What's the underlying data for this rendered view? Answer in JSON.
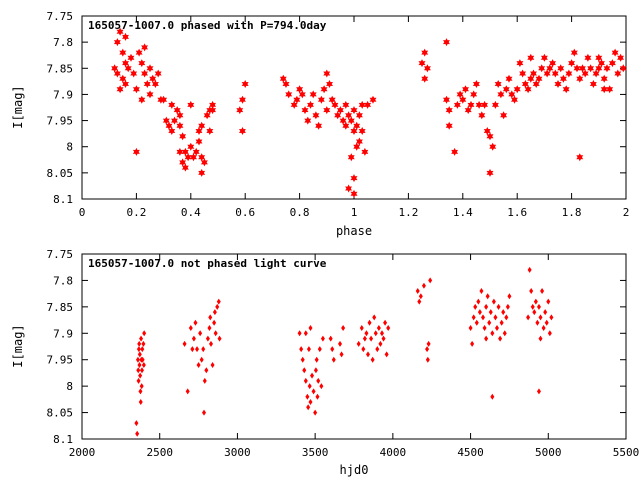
{
  "colors": {
    "points": "#ff0000",
    "axes": "#000000",
    "background": "#ffffff"
  },
  "chart_data": [
    {
      "type": "scatter",
      "title": "165057-1007.0 phased with P=794.0day",
      "xlabel": "phase",
      "ylabel": "I[mag]",
      "xlim": [
        0,
        2
      ],
      "ylim": [
        7.75,
        8.1
      ],
      "y_inverted": true,
      "grid": false,
      "xticks": [
        0,
        0.2,
        0.4,
        0.6,
        0.8,
        1,
        1.2,
        1.4,
        1.6,
        1.8,
        2
      ],
      "xtick_labels": [
        "0",
        "0.2",
        "0.4",
        "0.6",
        "0.8",
        "1",
        "1.2",
        "1.4",
        "1.6",
        "1.8",
        "2"
      ],
      "yticks": [
        7.75,
        7.8,
        7.85,
        7.9,
        7.95,
        8,
        8.05,
        8.1
      ],
      "ytick_labels": [
        "7.75",
        "7.8",
        "7.85",
        "7.9",
        "7.95",
        "8",
        "8.05",
        "8.1"
      ],
      "marker": "star",
      "points": [
        [
          0.13,
          7.8
        ],
        [
          0.14,
          7.78
        ],
        [
          0.15,
          7.82
        ],
        [
          0.16,
          7.79
        ],
        [
          0.12,
          7.85
        ],
        [
          0.13,
          7.86
        ],
        [
          0.15,
          7.87
        ],
        [
          0.16,
          7.84
        ],
        [
          0.17,
          7.85
        ],
        [
          0.18,
          7.83
        ],
        [
          0.14,
          7.89
        ],
        [
          0.16,
          7.88
        ],
        [
          0.19,
          7.86
        ],
        [
          0.2,
          7.89
        ],
        [
          0.21,
          7.82
        ],
        [
          0.22,
          7.84
        ],
        [
          0.23,
          7.86
        ],
        [
          0.24,
          7.88
        ],
        [
          0.25,
          7.85
        ],
        [
          0.22,
          7.91
        ],
        [
          0.25,
          7.9
        ],
        [
          0.23,
          7.81
        ],
        [
          0.26,
          7.87
        ],
        [
          0.27,
          7.88
        ],
        [
          0.28,
          7.86
        ],
        [
          0.29,
          7.91
        ],
        [
          0.2,
          8.01
        ],
        [
          0.3,
          7.91
        ],
        [
          0.31,
          7.95
        ],
        [
          0.32,
          7.96
        ],
        [
          0.33,
          7.97
        ],
        [
          0.34,
          7.95
        ],
        [
          0.33,
          7.92
        ],
        [
          0.35,
          7.93
        ],
        [
          0.36,
          7.94
        ],
        [
          0.36,
          7.96
        ],
        [
          0.37,
          7.98
        ],
        [
          0.36,
          8.01
        ],
        [
          0.37,
          8.03
        ],
        [
          0.38,
          8.01
        ],
        [
          0.38,
          8.04
        ],
        [
          0.39,
          8.02
        ],
        [
          0.4,
          8
        ],
        [
          0.4,
          7.92
        ],
        [
          0.41,
          8.02
        ],
        [
          0.42,
          8.01
        ],
        [
          0.43,
          7.99
        ],
        [
          0.44,
          8.02
        ],
        [
          0.44,
          8.05
        ],
        [
          0.45,
          8.03
        ],
        [
          0.43,
          7.97
        ],
        [
          0.44,
          7.96
        ],
        [
          0.46,
          7.94
        ],
        [
          0.47,
          7.93
        ],
        [
          0.47,
          7.97
        ],
        [
          0.48,
          7.93
        ],
        [
          0.48,
          7.92
        ],
        [
          0.58,
          7.93
        ],
        [
          0.59,
          7.91
        ],
        [
          0.6,
          7.88
        ],
        [
          0.59,
          7.97
        ],
        [
          0.74,
          7.87
        ],
        [
          0.75,
          7.88
        ],
        [
          0.76,
          7.9
        ],
        [
          0.78,
          7.92
        ],
        [
          0.79,
          7.91
        ],
        [
          0.8,
          7.89
        ],
        [
          0.81,
          7.9
        ],
        [
          0.82,
          7.93
        ],
        [
          0.83,
          7.95
        ],
        [
          0.84,
          7.92
        ],
        [
          0.85,
          7.9
        ],
        [
          0.86,
          7.94
        ],
        [
          0.87,
          7.96
        ],
        [
          0.88,
          7.91
        ],
        [
          0.89,
          7.89
        ],
        [
          0.9,
          7.93
        ],
        [
          0.9,
          7.86
        ],
        [
          0.91,
          7.88
        ],
        [
          0.92,
          7.91
        ],
        [
          0.93,
          7.92
        ],
        [
          0.94,
          7.94
        ],
        [
          0.95,
          7.93
        ],
        [
          0.96,
          7.95
        ],
        [
          0.97,
          7.96
        ],
        [
          0.97,
          7.92
        ],
        [
          0.98,
          7.94
        ],
        [
          0.99,
          7.95
        ],
        [
          1,
          7.93
        ],
        [
          1,
          7.97
        ],
        [
          1.01,
          7.96
        ],
        [
          1.01,
          8
        ],
        [
          1.02,
          7.99
        ],
        [
          1.02,
          7.94
        ],
        [
          1.03,
          7.92
        ],
        [
          1.03,
          7.97
        ],
        [
          1.04,
          8.01
        ],
        [
          0.99,
          8.02
        ],
        [
          1,
          8.06
        ],
        [
          0.98,
          8.08
        ],
        [
          1,
          8.09
        ],
        [
          1.05,
          7.92
        ],
        [
          1.07,
          7.91
        ],
        [
          1.25,
          7.84
        ],
        [
          1.26,
          7.82
        ],
        [
          1.27,
          7.85
        ],
        [
          1.26,
          7.87
        ],
        [
          1.34,
          7.91
        ],
        [
          1.35,
          7.93
        ],
        [
          1.34,
          7.8
        ],
        [
          1.35,
          7.96
        ],
        [
          1.37,
          8.01
        ],
        [
          1.38,
          7.92
        ],
        [
          1.39,
          7.9
        ],
        [
          1.4,
          7.91
        ],
        [
          1.41,
          7.89
        ],
        [
          1.42,
          7.93
        ],
        [
          1.43,
          7.92
        ],
        [
          1.44,
          7.9
        ],
        [
          1.45,
          7.88
        ],
        [
          1.46,
          7.92
        ],
        [
          1.47,
          7.94
        ],
        [
          1.48,
          7.92
        ],
        [
          1.49,
          7.97
        ],
        [
          1.5,
          7.98
        ],
        [
          1.5,
          8.05
        ],
        [
          1.51,
          8
        ],
        [
          1.52,
          7.92
        ],
        [
          1.53,
          7.88
        ],
        [
          1.54,
          7.9
        ],
        [
          1.55,
          7.94
        ],
        [
          1.56,
          7.89
        ],
        [
          1.57,
          7.87
        ],
        [
          1.58,
          7.9
        ],
        [
          1.59,
          7.91
        ],
        [
          1.6,
          7.89
        ],
        [
          1.61,
          7.84
        ],
        [
          1.62,
          7.86
        ],
        [
          1.63,
          7.88
        ],
        [
          1.64,
          7.89
        ],
        [
          1.65,
          7.87
        ],
        [
          1.65,
          7.83
        ],
        [
          1.66,
          7.86
        ],
        [
          1.67,
          7.88
        ],
        [
          1.68,
          7.87
        ],
        [
          1.69,
          7.85
        ],
        [
          1.7,
          7.83
        ],
        [
          1.71,
          7.86
        ],
        [
          1.72,
          7.85
        ],
        [
          1.73,
          7.84
        ],
        [
          1.74,
          7.86
        ],
        [
          1.75,
          7.88
        ],
        [
          1.76,
          7.85
        ],
        [
          1.77,
          7.87
        ],
        [
          1.78,
          7.89
        ],
        [
          1.79,
          7.86
        ],
        [
          1.8,
          7.84
        ],
        [
          1.81,
          7.82
        ],
        [
          1.82,
          7.85
        ],
        [
          1.83,
          7.87
        ],
        [
          1.84,
          7.85
        ],
        [
          1.85,
          7.86
        ],
        [
          1.86,
          7.83
        ],
        [
          1.87,
          7.85
        ],
        [
          1.88,
          7.88
        ],
        [
          1.89,
          7.86
        ],
        [
          1.9,
          7.85
        ],
        [
          1.91,
          7.84
        ],
        [
          1.92,
          7.87
        ],
        [
          1.93,
          7.85
        ],
        [
          1.94,
          7.89
        ],
        [
          1.95,
          7.84
        ],
        [
          1.96,
          7.82
        ],
        [
          1.97,
          7.86
        ],
        [
          1.98,
          7.83
        ],
        [
          1.99,
          7.85
        ],
        [
          1.83,
          8.02
        ],
        [
          1.9,
          7.83
        ],
        [
          1.92,
          7.89
        ]
      ]
    },
    {
      "type": "scatter",
      "title": "165057-1007.0 not phased light curve",
      "xlabel": "hjd0",
      "ylabel": "I[mag]",
      "xlim": [
        2000,
        5500
      ],
      "ylim": [
        7.75,
        8.1
      ],
      "y_inverted": true,
      "grid": false,
      "xticks": [
        2000,
        2500,
        3000,
        3500,
        4000,
        4500,
        5000,
        5500
      ],
      "xtick_labels": [
        "2000",
        "2500",
        "3000",
        "3500",
        "4000",
        "4500",
        "5000",
        "5500"
      ],
      "yticks": [
        7.75,
        7.8,
        7.85,
        7.9,
        7.95,
        8,
        8.05,
        8.1
      ],
      "ytick_labels": [
        "7.75",
        "7.8",
        "7.85",
        "7.9",
        "7.95",
        "8",
        "8.05",
        "8.1"
      ],
      "marker": "diamond",
      "points": [
        [
          2350,
          8.07
        ],
        [
          2355,
          8.09
        ],
        [
          2360,
          7.95
        ],
        [
          2362,
          7.97
        ],
        [
          2364,
          7.99
        ],
        [
          2366,
          7.93
        ],
        [
          2368,
          7.92
        ],
        [
          2370,
          7.96
        ],
        [
          2372,
          7.94
        ],
        [
          2374,
          7.98
        ],
        [
          2376,
          8.01
        ],
        [
          2378,
          8.03
        ],
        [
          2380,
          7.91
        ],
        [
          2382,
          7.95
        ],
        [
          2384,
          8
        ],
        [
          2386,
          7.97
        ],
        [
          2388,
          7.93
        ],
        [
          2390,
          7.95
        ],
        [
          2395,
          7.92
        ],
        [
          2398,
          7.96
        ],
        [
          2400,
          7.9
        ],
        [
          2660,
          7.92
        ],
        [
          2680,
          8.01
        ],
        [
          2700,
          7.89
        ],
        [
          2710,
          7.93
        ],
        [
          2720,
          7.91
        ],
        [
          2730,
          7.88
        ],
        [
          2740,
          7.93
        ],
        [
          2750,
          7.96
        ],
        [
          2760,
          7.9
        ],
        [
          2770,
          7.95
        ],
        [
          2780,
          7.93
        ],
        [
          2785,
          8.05
        ],
        [
          2790,
          7.99
        ],
        [
          2800,
          7.97
        ],
        [
          2810,
          7.91
        ],
        [
          2820,
          7.89
        ],
        [
          2825,
          7.87
        ],
        [
          2830,
          7.92
        ],
        [
          2840,
          7.96
        ],
        [
          2850,
          7.88
        ],
        [
          2855,
          7.86
        ],
        [
          2860,
          7.9
        ],
        [
          2870,
          7.85
        ],
        [
          2880,
          7.84
        ],
        [
          2885,
          7.91
        ],
        [
          3400,
          7.9
        ],
        [
          3410,
          7.93
        ],
        [
          3420,
          7.95
        ],
        [
          3430,
          7.97
        ],
        [
          3440,
          7.99
        ],
        [
          3450,
          8.02
        ],
        [
          3455,
          8.04
        ],
        [
          3460,
          7.93
        ],
        [
          3465,
          8
        ],
        [
          3470,
          8.03
        ],
        [
          3480,
          7.98
        ],
        [
          3490,
          8.01
        ],
        [
          3500,
          8.05
        ],
        [
          3505,
          7.97
        ],
        [
          3510,
          7.95
        ],
        [
          3515,
          8.02
        ],
        [
          3520,
          7.99
        ],
        [
          3530,
          7.93
        ],
        [
          3540,
          8
        ],
        [
          3550,
          7.91
        ],
        [
          3470,
          7.89
        ],
        [
          3440,
          7.9
        ],
        [
          3600,
          7.91
        ],
        [
          3610,
          7.93
        ],
        [
          3620,
          7.95
        ],
        [
          3660,
          7.92
        ],
        [
          3670,
          7.94
        ],
        [
          3680,
          7.89
        ],
        [
          3780,
          7.92
        ],
        [
          3800,
          7.89
        ],
        [
          3810,
          7.93
        ],
        [
          3820,
          7.91
        ],
        [
          3830,
          7.9
        ],
        [
          3840,
          7.94
        ],
        [
          3850,
          7.88
        ],
        [
          3860,
          7.91
        ],
        [
          3870,
          7.95
        ],
        [
          3880,
          7.87
        ],
        [
          3890,
          7.9
        ],
        [
          3900,
          7.93
        ],
        [
          3910,
          7.89
        ],
        [
          3920,
          7.92
        ],
        [
          3930,
          7.9
        ],
        [
          3940,
          7.91
        ],
        [
          3950,
          7.88
        ],
        [
          3960,
          7.94
        ],
        [
          3970,
          7.89
        ],
        [
          4160,
          7.82
        ],
        [
          4170,
          7.84
        ],
        [
          4180,
          7.83
        ],
        [
          4200,
          7.81
        ],
        [
          4220,
          7.93
        ],
        [
          4225,
          7.95
        ],
        [
          4230,
          7.92
        ],
        [
          4240,
          7.8
        ],
        [
          4500,
          7.89
        ],
        [
          4510,
          7.92
        ],
        [
          4520,
          7.87
        ],
        [
          4530,
          7.85
        ],
        [
          4540,
          7.88
        ],
        [
          4550,
          7.84
        ],
        [
          4560,
          7.86
        ],
        [
          4570,
          7.82
        ],
        [
          4580,
          7.87
        ],
        [
          4590,
          7.89
        ],
        [
          4600,
          7.85
        ],
        [
          4610,
          7.83
        ],
        [
          4620,
          7.88
        ],
        [
          4630,
          7.86
        ],
        [
          4640,
          7.9
        ],
        [
          4650,
          7.84
        ],
        [
          4660,
          7.87
        ],
        [
          4670,
          7.89
        ],
        [
          4680,
          7.85
        ],
        [
          4690,
          7.91
        ],
        [
          4700,
          7.88
        ],
        [
          4710,
          7.86
        ],
        [
          4720,
          7.9
        ],
        [
          4730,
          7.87
        ],
        [
          4740,
          7.85
        ],
        [
          4750,
          7.83
        ],
        [
          4640,
          8.02
        ],
        [
          4600,
          7.91
        ],
        [
          4870,
          7.87
        ],
        [
          4880,
          7.78
        ],
        [
          4890,
          7.82
        ],
        [
          4900,
          7.85
        ],
        [
          4910,
          7.86
        ],
        [
          4920,
          7.84
        ],
        [
          4930,
          7.88
        ],
        [
          4940,
          7.85
        ],
        [
          4950,
          7.87
        ],
        [
          4960,
          7.82
        ],
        [
          4970,
          7.89
        ],
        [
          4980,
          7.86
        ],
        [
          4990,
          7.88
        ],
        [
          5000,
          7.84
        ],
        [
          5010,
          7.9
        ],
        [
          5020,
          7.87
        ],
        [
          4950,
          7.91
        ],
        [
          4940,
          8.01
        ]
      ]
    }
  ]
}
